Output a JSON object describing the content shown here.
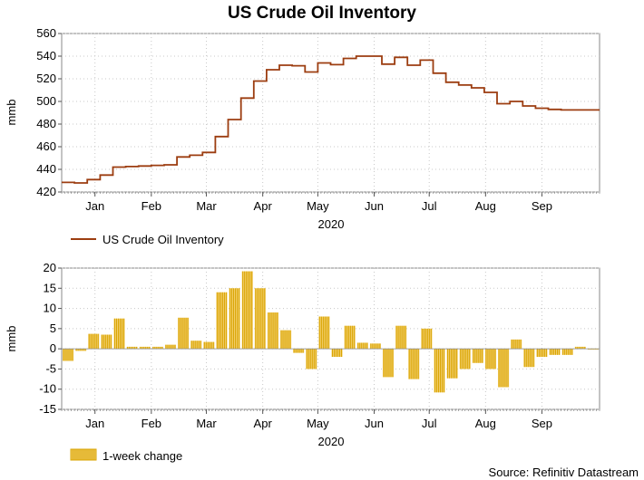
{
  "title": "US Crude Oil Inventory",
  "source": "Source: Refinitiv Datastream",
  "colors": {
    "line": "#9c3d10",
    "bar": "#d9a400",
    "bar_fill": "#f3d070"
  },
  "chart_data": [
    {
      "type": "line",
      "ylabel": "mmb",
      "xlabel": "2020",
      "ylim": [
        420,
        560
      ],
      "yticks": [
        "420",
        "440",
        "460",
        "480",
        "500",
        "520",
        "540",
        "560"
      ],
      "xticks": [
        {
          "label": "Jan",
          "week": 2.6
        },
        {
          "label": "Feb",
          "week": 7.0
        },
        {
          "label": "Mar",
          "week": 11.3
        },
        {
          "label": "Apr",
          "week": 15.7
        },
        {
          "label": "May",
          "week": 20.0
        },
        {
          "label": "Jun",
          "week": 24.4
        },
        {
          "label": "Jul",
          "week": 28.7
        },
        {
          "label": "Aug",
          "week": 33.1
        },
        {
          "label": "Sep",
          "week": 37.5
        }
      ],
      "grid": true,
      "legend": "bottom-left",
      "series": [
        {
          "name": "US Crude Oil Inventory",
          "values": [
            428.5,
            428,
            431,
            435,
            442,
            442.5,
            443,
            443.5,
            444,
            451,
            452.5,
            455,
            469,
            484,
            503,
            518,
            528,
            532,
            531.5,
            526,
            534,
            532.5,
            538,
            540,
            540,
            533,
            539,
            532,
            536.5,
            525,
            517,
            514.5,
            512,
            508,
            498,
            500,
            496,
            494,
            493,
            492.5,
            492.5,
            492.5
          ]
        }
      ]
    },
    {
      "type": "bar",
      "ylabel": "mmb",
      "xlabel": "2020",
      "ylim": [
        -15,
        20
      ],
      "yticks": [
        "-15",
        "-10",
        "-5",
        "0",
        "5",
        "10",
        "15",
        "20"
      ],
      "xticks": [
        {
          "label": "Jan",
          "week": 2.6
        },
        {
          "label": "Feb",
          "week": 7.0
        },
        {
          "label": "Mar",
          "week": 11.3
        },
        {
          "label": "Apr",
          "week": 15.7
        },
        {
          "label": "May",
          "week": 20.0
        },
        {
          "label": "Jun",
          "week": 24.4
        },
        {
          "label": "Jul",
          "week": 28.7
        },
        {
          "label": "Aug",
          "week": 33.1
        },
        {
          "label": "Sep",
          "week": 37.5
        }
      ],
      "grid": true,
      "legend": "bottom-left",
      "series": [
        {
          "name": "1-week change",
          "values": [
            -3,
            -0.5,
            3.7,
            3.5,
            7.5,
            0.5,
            0.5,
            0.5,
            1,
            7.7,
            2,
            1.7,
            14,
            15,
            19.2,
            15,
            9,
            4.6,
            -1,
            -5,
            8,
            -2,
            5.7,
            1.5,
            1.3,
            -7,
            5.7,
            -7.5,
            5,
            -10.8,
            -7.3,
            -5,
            -3.5,
            -5,
            -9.5,
            2.3,
            -4.5,
            -2,
            -1.5,
            -1.5,
            0.5,
            0
          ]
        }
      ]
    }
  ]
}
